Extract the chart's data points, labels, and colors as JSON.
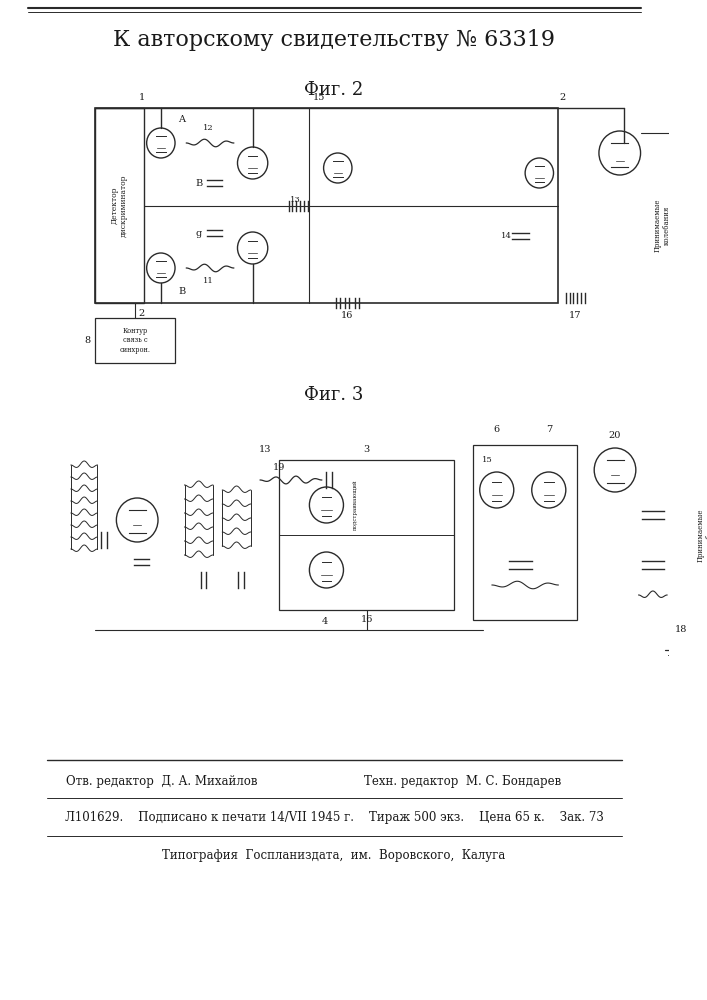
{
  "title": "К авторскому свидетельству № 63319",
  "fig2_label": "Фиг. 2",
  "fig3_label": "Фиг. 3",
  "footer_line1_left": "Отв. редактор  Д. А. Михайлов",
  "footer_line1_right": "Техн. редактор  М. С. Бондарев",
  "footer_line2": "Л101629.    Подписано к печати 14/VII 1945 г.    Тираж 500 экз.    Цена 65 к.    Зак. 73",
  "footer_line3": "Типография  Госпланиздата,  им.  Воровского,  Калуга",
  "bg_color": "#ffffff",
  "text_color": "#1a1a1a",
  "line_color": "#2a2a2a",
  "title_fontsize": 16,
  "fig_label_fontsize": 13,
  "footer_fontsize": 8.5
}
